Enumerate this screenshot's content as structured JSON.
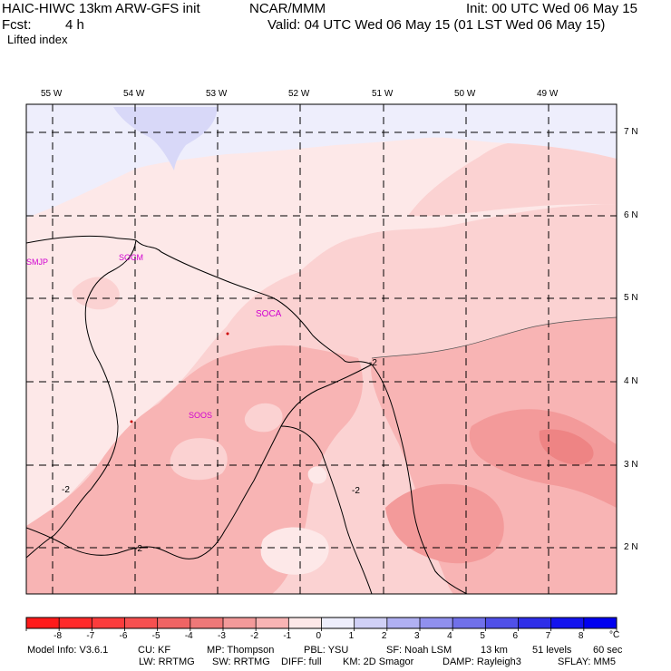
{
  "header": {
    "model": "HAIC-HIWC 13km ARW-GFS init",
    "center": "NCAR/MMM",
    "init": "Init: 00 UTC Wed 06 May 15",
    "fcst_label": "Fcst:",
    "fcst_value": "4 h",
    "valid": "Valid: 04 UTC Wed 06 May 15 (01 LST Wed 06 May 15)",
    "field": "Lifted index"
  },
  "map": {
    "lon_labels": [
      "55 W",
      "54 W",
      "53 W",
      "52 W",
      "51 W",
      "50 W",
      "49 W"
    ],
    "lat_labels": [
      "7 N",
      "6 N",
      "5 N",
      "4 N",
      "3 N",
      "2 N"
    ],
    "stations": [
      "SMJP",
      "SOCM",
      "SOCA",
      "SOOS"
    ],
    "contour_labels": [
      "-2",
      "-2",
      "-2",
      "-2"
    ],
    "colors": {
      "neg1_0": "#fde8e8",
      "neg2_neg1": "#fbd2d2",
      "neg3_neg2": "#f8b4b4",
      "neg4_neg3": "#f39a9a",
      "neg5_neg4": "#ee8484",
      "pos0_1": "#eeeefc",
      "pos1_2": "#d8d8f8"
    }
  },
  "colorbar": {
    "labels": [
      "-8",
      "-7",
      "-6",
      "-5",
      "-4",
      "-3",
      "-2",
      "-1",
      "0",
      "1",
      "2",
      "3",
      "4",
      "5",
      "6",
      "7",
      "8"
    ],
    "unit": "°C",
    "colors": [
      "#ff1a1a",
      "#ff2a2a",
      "#fb3c3c",
      "#f65050",
      "#f06464",
      "#ee7878",
      "#f39a9a",
      "#f8b4b4",
      "#fde8e8",
      "#eeeefc",
      "#d0d0f6",
      "#b0b0f2",
      "#9090ee",
      "#7070ea",
      "#5050e8",
      "#2e2ee8",
      "#1414ee",
      "#0000f0"
    ]
  },
  "footer": {
    "line1": [
      "Model Info: V3.6.1",
      "CU: KF",
      "MP: Thompson",
      "PBL: YSU",
      "SF: Noah LSM",
      "13 km",
      "51 levels",
      "60 sec"
    ],
    "line2": [
      "LW: RRTMG",
      "SW: RRTMG",
      "DIFF: full",
      "KM: 2D Smagor",
      "DAMP: Rayleigh3",
      "SFLAY: MM5"
    ]
  }
}
